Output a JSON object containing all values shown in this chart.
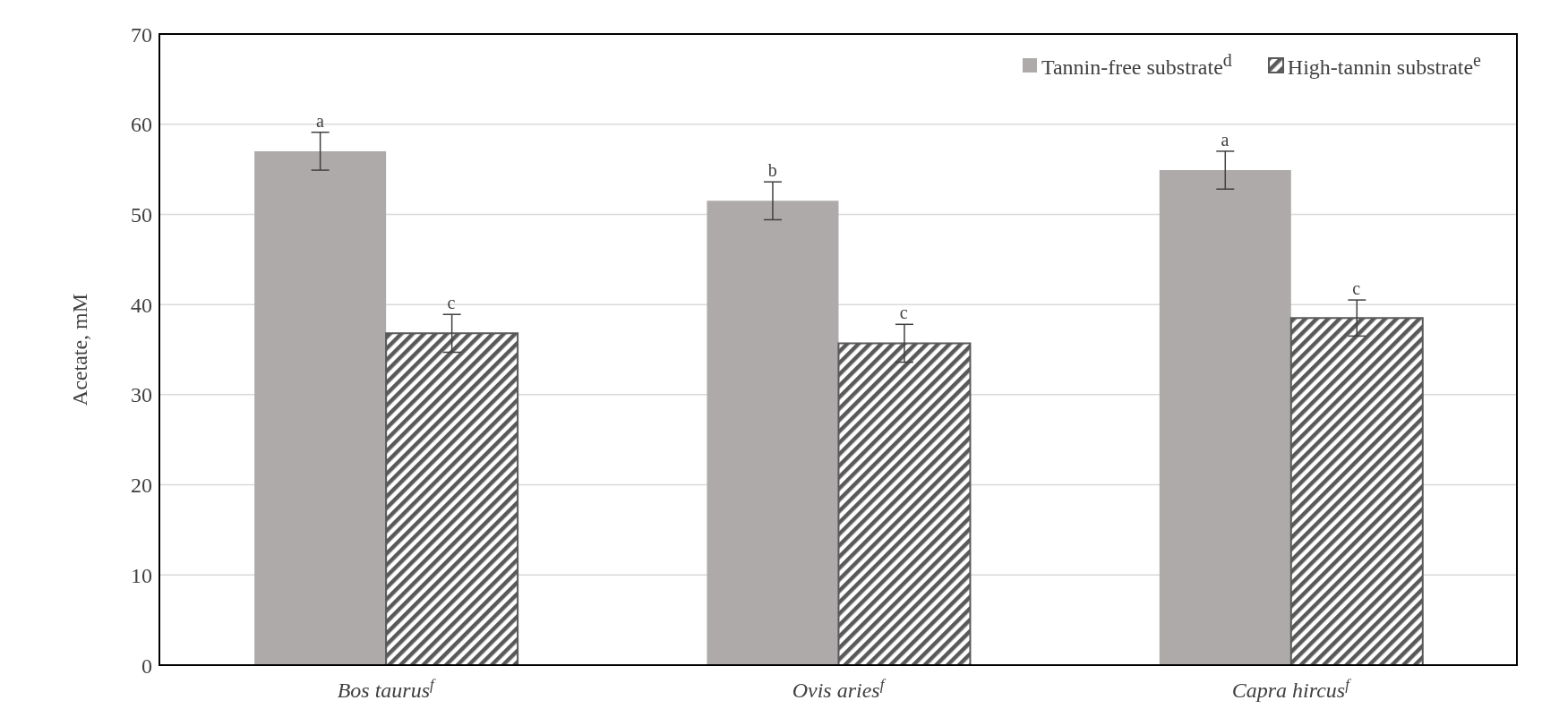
{
  "chart_data": {
    "type": "bar",
    "ylabel": "Acetate, mM",
    "categories": [
      "Bos taurus$^{f}$",
      "Ovis aries$^{f}$",
      "Capra hircus$^{f}$"
    ],
    "series": [
      {
        "name": "Tannin-free substrate$^{d}$",
        "color": "#aeaaaa",
        "values": [
          57.0,
          51.5,
          54.9
        ],
        "errors": [
          2.1,
          2.1,
          2.1
        ],
        "value_labels": [
          "a",
          "b",
          "a"
        ]
      },
      {
        "name": "High-tannin substrate$^{e}$",
        "color": "#595959",
        "values": [
          36.8,
          35.7,
          38.5
        ],
        "errors": [
          2.1,
          2.1,
          2.0
        ],
        "value_labels": [
          "c",
          "c",
          "c"
        ]
      }
    ],
    "ylim": [
      0,
      70
    ],
    "yticks": [
      0,
      10,
      20,
      30,
      40,
      50,
      60,
      70
    ],
    "grid": "y",
    "legend": "top right"
  }
}
